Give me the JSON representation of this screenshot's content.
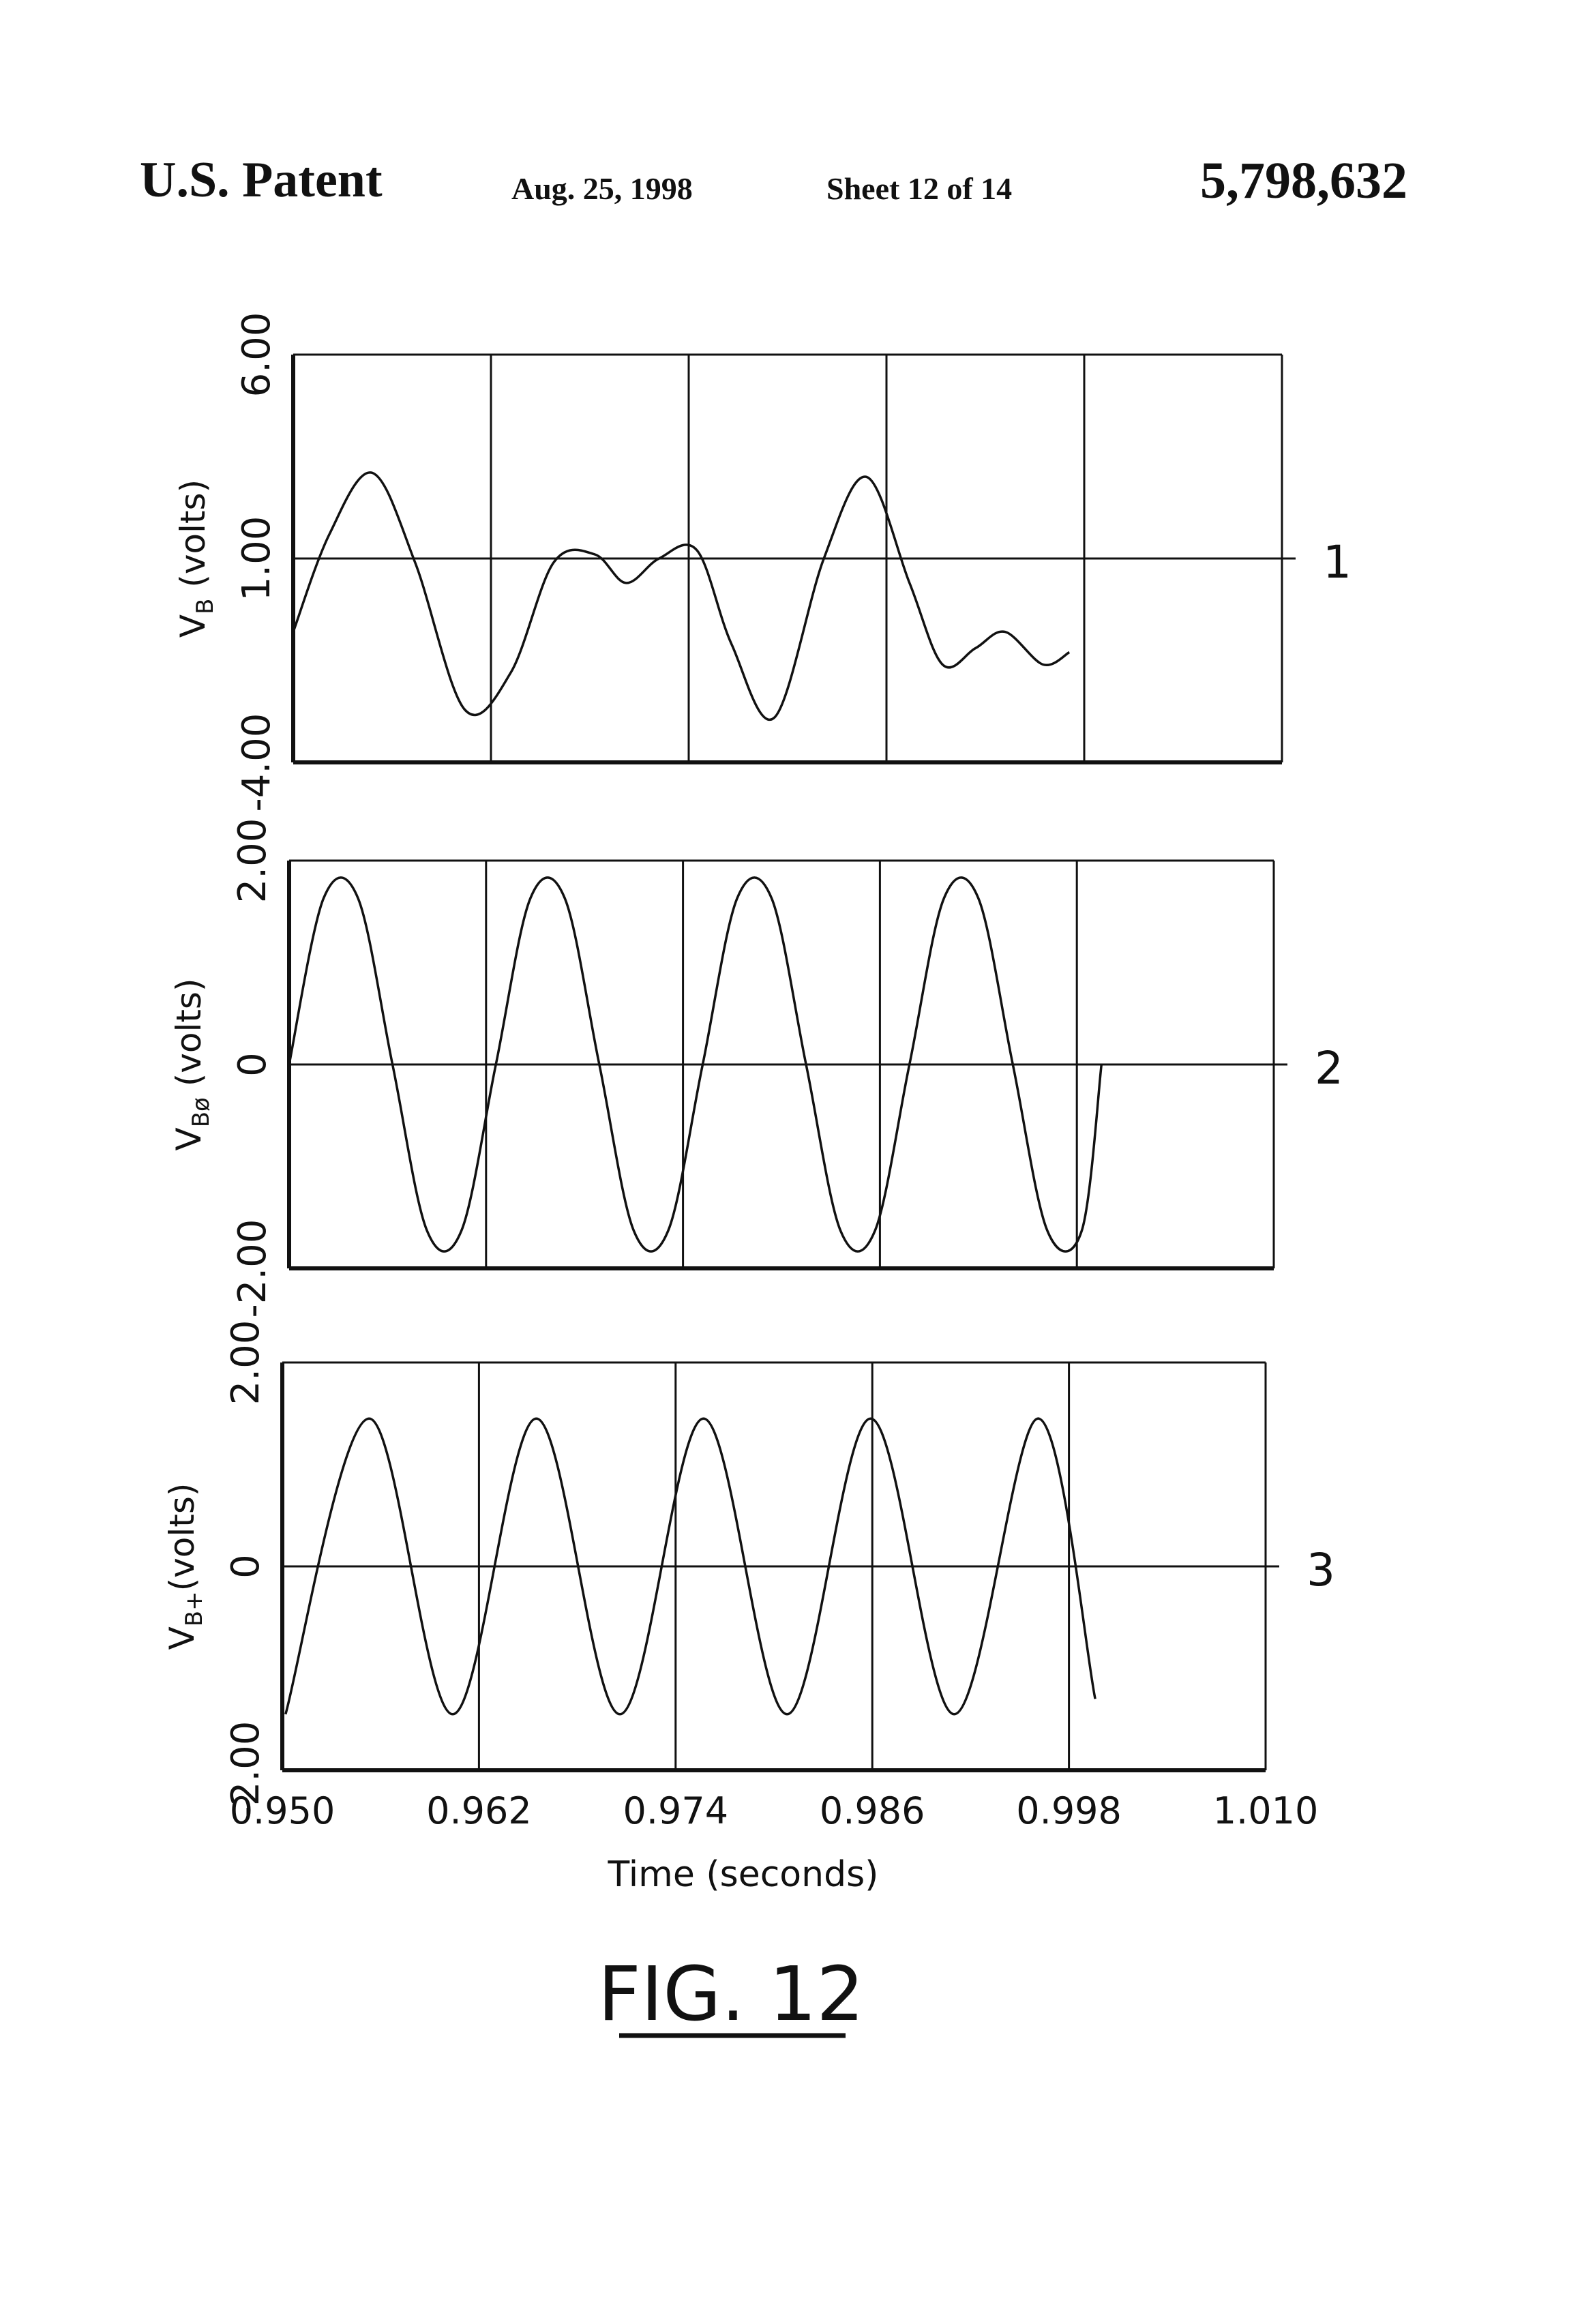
{
  "header": {
    "left": "U.S. Patent",
    "date": "Aug. 25, 1998",
    "sheet": "Sheet 12 of 14",
    "patent_number": "5,798,632"
  },
  "figure_label": "FIG. 12",
  "chart_data": [
    {
      "type": "line",
      "panel_number": "1",
      "ylabel": "VB (volts)",
      "ylabel_base": "V",
      "ylabel_sub": "B",
      "ylabel_suffix": " (volts)",
      "ylim": [
        -4.0,
        6.0
      ],
      "yticks": [
        "-4.00",
        "1.00",
        "6.00"
      ],
      "xlim": [
        0.95,
        1.01
      ],
      "grid": true,
      "series": [
        {
          "x": [
            0.95,
            0.9522,
            0.9548,
            0.9574,
            0.9604,
            0.9632,
            0.9658,
            0.9683,
            0.9702,
            0.9722,
            0.9745,
            0.9766,
            0.9792,
            0.9822,
            0.9848,
            0.9874,
            0.9894,
            0.9914,
            0.9932,
            0.9955,
            0.9971
          ],
          "y": [
            -0.8,
            1.6,
            3.1,
            0.9,
            -2.7,
            -1.8,
            0.9,
            1.1,
            0.4,
            1.0,
            1.2,
            -1.1,
            -2.9,
            1.0,
            3.0,
            0.4,
            -1.6,
            -1.2,
            -0.8,
            -1.6,
            -1.3
          ]
        }
      ]
    },
    {
      "type": "line",
      "panel_number": "2",
      "ylabel": "VBø (volts)",
      "ylabel_base": "V",
      "ylabel_sub": "Bø",
      "ylabel_suffix": " (volts)",
      "ylim": [
        -2.0,
        2.0
      ],
      "yticks": [
        "-2.00",
        "0",
        "2.00"
      ],
      "xlim": [
        0.95,
        1.01
      ],
      "grid": true,
      "series": [
        {
          "x": [
            0.95,
            0.9521,
            0.9542,
            0.9563,
            0.9584,
            0.9605,
            0.9626,
            0.9647,
            0.9668,
            0.9689,
            0.971,
            0.9731,
            0.9752,
            0.9773,
            0.9794,
            0.9815,
            0.9836,
            0.9857,
            0.9878,
            0.9899,
            0.992,
            0.9941,
            0.9962,
            0.9983,
            0.9995
          ],
          "y": [
            0.0,
            1.63,
            1.63,
            0.0,
            -1.63,
            -1.63,
            0.0,
            1.63,
            1.63,
            0.0,
            -1.63,
            -1.63,
            0.0,
            1.63,
            1.63,
            0.0,
            -1.63,
            -1.63,
            0.0,
            1.63,
            1.63,
            0.0,
            -1.63,
            -1.63,
            0.0
          ]
        }
      ]
    },
    {
      "type": "line",
      "panel_number": "3",
      "ylabel": "VB+(volts)",
      "ylabel_base": "V",
      "ylabel_sub": "B+",
      "ylabel_suffix": "(volts)",
      "ylim": [
        -2.0,
        2.0
      ],
      "yticks": [
        "-2.00",
        "0",
        "2.00"
      ],
      "xlim": [
        0.95,
        1.01
      ],
      "xticks": [
        "0.950",
        "0.962",
        "0.974",
        "0.986",
        "0.998",
        "1.010"
      ],
      "xtick_values": [
        0.95,
        0.962,
        0.974,
        0.986,
        0.998,
        1.01
      ],
      "xlabel": "Time (seconds)",
      "grid": true,
      "series": [
        {
          "x": [
            0.9502,
            0.9553,
            0.9604,
            0.9655,
            0.9706,
            0.9757,
            0.9808,
            0.9859,
            0.991,
            0.9961,
            0.9996
          ],
          "y": [
            -1.45,
            1.45,
            -1.45,
            1.45,
            -1.45,
            1.45,
            -1.45,
            1.45,
            -1.45,
            1.45,
            -1.3
          ]
        }
      ]
    }
  ]
}
